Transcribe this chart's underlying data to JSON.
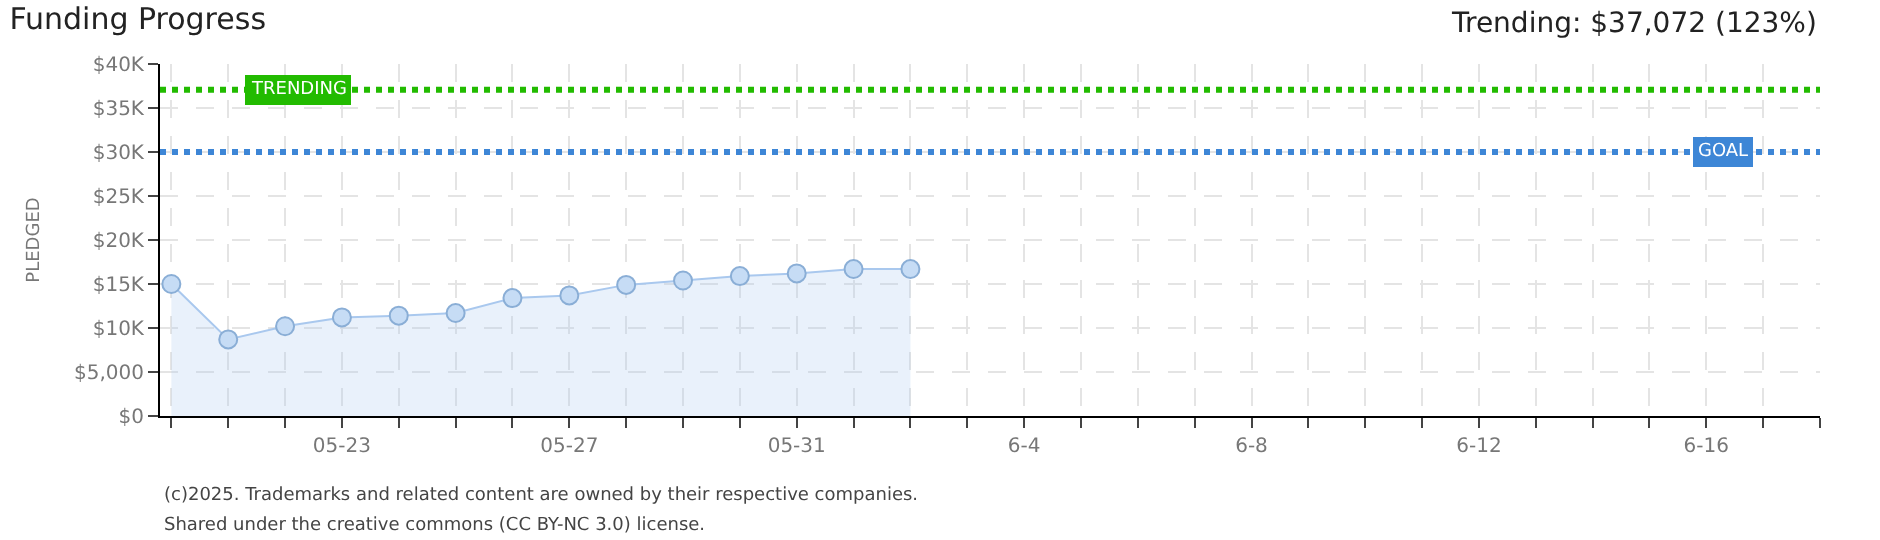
{
  "chart_data": {
    "type": "area",
    "title": "Funding Progress",
    "ylabel": "PLEDGED",
    "categories": [
      null,
      null,
      null,
      "05-23",
      null,
      null,
      null,
      "05-27",
      null,
      null,
      null,
      "05-31",
      null,
      null,
      null,
      "6-4",
      null,
      null,
      null,
      "6-8",
      null,
      null,
      null,
      "6-12",
      null,
      null,
      null,
      "6-16",
      null,
      null
    ],
    "series": [
      {
        "color": "#a9c8ee",
        "values": [
          15000,
          8700,
          10200,
          11200,
          11400,
          11700,
          13400,
          13700,
          14900,
          15400,
          15900,
          16200,
          16700,
          16700,
          null,
          null,
          null,
          null,
          null,
          null,
          null,
          null,
          null,
          null,
          null,
          null,
          null,
          null,
          null,
          null
        ]
      }
    ],
    "ylim": [
      0,
      40000
    ],
    "yticks": [
      {
        "value": 0,
        "label": "$0"
      },
      {
        "value": 5000,
        "label": "$5,000"
      },
      {
        "value": 10000,
        "label": "$10K"
      },
      {
        "value": 15000,
        "label": "$15K"
      },
      {
        "value": 20000,
        "label": "$20K"
      },
      {
        "value": 25000,
        "label": "$25K"
      },
      {
        "value": 30000,
        "label": "$30K"
      },
      {
        "value": 35000,
        "label": "$35K"
      },
      {
        "value": 40000,
        "label": "$40K"
      }
    ],
    "ref_lines": [
      {
        "axis": "y",
        "value": 37072,
        "label": "TRENDING",
        "color": "#22bb00",
        "line_style": "dotted"
      },
      {
        "axis": "y",
        "value": 30000,
        "label": "GOAL",
        "color": "#3d86d6",
        "line_style": "dotted"
      }
    ],
    "annotations": [
      "Trending: $37,072 (123%)",
      "(c)2025. Trademarks and related content are owned by their respective companies.",
      "Shared under the creative commons (CC BY-NC 3.0) license."
    ],
    "grid": true,
    "marker": "circle",
    "line_style": "solid"
  }
}
